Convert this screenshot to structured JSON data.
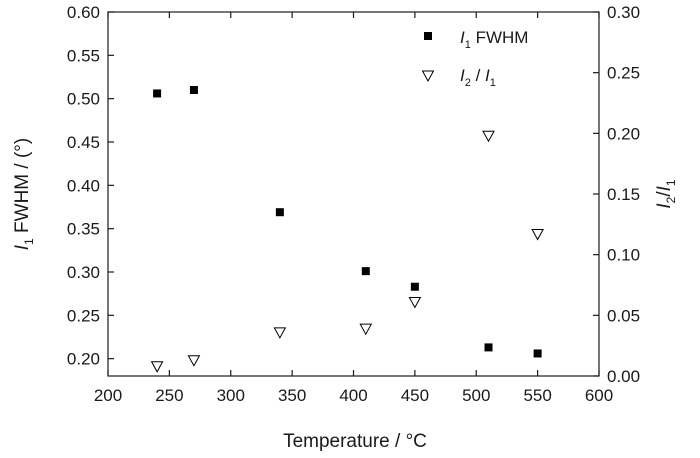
{
  "chart_data": {
    "type": "scatter",
    "x": [
      240,
      270,
      340,
      410,
      450,
      510,
      550
    ],
    "xlim": [
      200,
      600
    ],
    "xticks": [
      "200",
      "250",
      "300",
      "350",
      "400",
      "450",
      "500",
      "550",
      "600"
    ],
    "ylim_left": [
      0.18,
      0.6
    ],
    "yticks_left": [
      "0.20",
      "0.25",
      "0.30",
      "0.35",
      "0.40",
      "0.45",
      "0.50",
      "0.55",
      "0.60"
    ],
    "ylim_right": [
      0.0,
      0.3
    ],
    "yticks_right": [
      "0.00",
      "0.05",
      "0.10",
      "0.15",
      "0.20",
      "0.25",
      "0.30"
    ],
    "grid": false,
    "legend_position": "top-right",
    "xlabel": "Temperature / °C",
    "ylabel_left": {
      "italic": "I",
      "sub": "1",
      "text": " FWHM / (°)"
    },
    "ylabel_right": {
      "a": "I",
      "a_sub": "2",
      "slash": "/",
      "b": "I",
      "b_sub": "1"
    },
    "series": [
      {
        "axis": "left",
        "marker": "filled-square",
        "color": "#000000",
        "values": [
          0.506,
          0.51,
          0.369,
          0.301,
          0.283,
          0.213,
          0.206
        ],
        "legend": {
          "italic": "I",
          "sub": "1",
          "text": " FWHM"
        }
      },
      {
        "axis": "right",
        "marker": "open-triangle-down",
        "color": "#000000",
        "values": [
          0.008,
          0.013,
          0.036,
          0.039,
          0.061,
          0.198,
          0.117
        ],
        "legend": {
          "a": "I",
          "a_sub": "2",
          "slash": " / ",
          "b": "I",
          "b_sub": "1"
        }
      }
    ]
  }
}
